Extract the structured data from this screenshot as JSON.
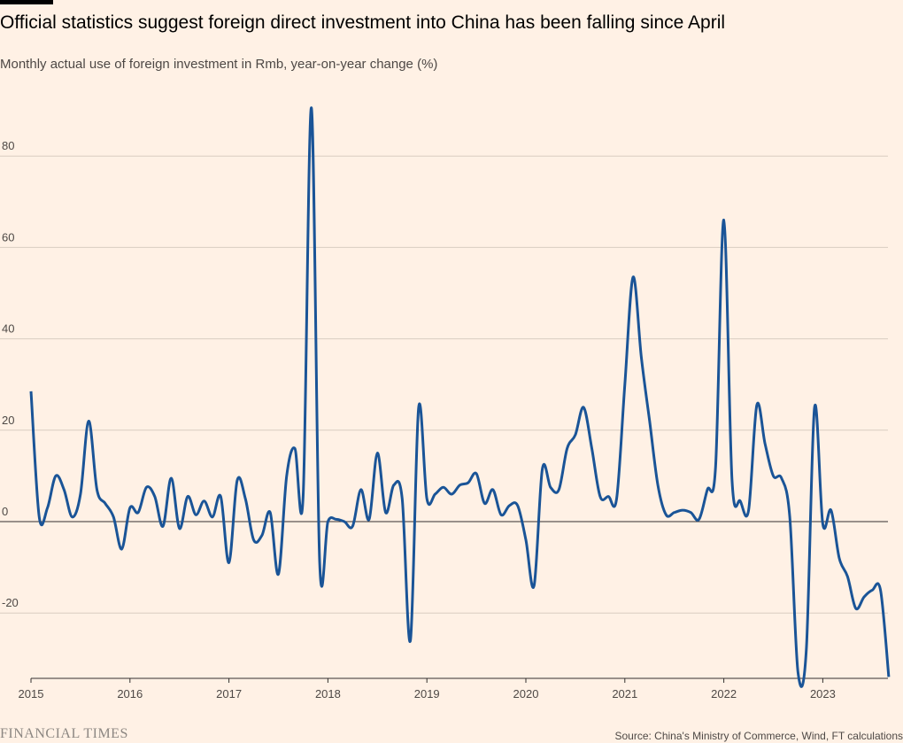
{
  "title": "Official statistics suggest foreign direct investment into China has been falling since April",
  "subtitle": "Monthly actual use of foreign investment in Rmb, year-on-year change (%)",
  "footer": {
    "logo": "FINANCIAL TIMES",
    "source": "Source: China's Ministry of Commerce, Wind, FT calculations"
  },
  "colors": {
    "background": "#fff1e5",
    "series": "#1a5497",
    "grid": "#d9cdc2",
    "zero_line": "#33302e"
  },
  "chart_data": {
    "type": "line",
    "title": "Official statistics suggest foreign direct investment into China has been falling since April",
    "subtitle": "Monthly actual use of foreign investment in Rmb, year-on-year change (%)",
    "xlabel": "",
    "ylabel": "",
    "x_ticks": [
      "2015",
      "2016",
      "2017",
      "2018",
      "2019",
      "2020",
      "2021",
      "2022",
      "2023"
    ],
    "y_ticks": [
      80,
      60,
      40,
      20,
      0,
      -20
    ],
    "ylim": [
      -34,
      92
    ],
    "xlim": [
      "2015-01",
      "2023-09"
    ],
    "grid": true,
    "legend": "none",
    "series": [
      {
        "name": "",
        "x": [
          "2015-01",
          "2015-02",
          "2015-03",
          "2015-04",
          "2015-05",
          "2015-06",
          "2015-07",
          "2015-08",
          "2015-09",
          "2015-10",
          "2015-11",
          "2015-12",
          "2016-01",
          "2016-02",
          "2016-03",
          "2016-04",
          "2016-05",
          "2016-06",
          "2016-07",
          "2016-08",
          "2016-09",
          "2016-10",
          "2016-11",
          "2016-12",
          "2017-01",
          "2017-02",
          "2017-03",
          "2017-04",
          "2017-05",
          "2017-06",
          "2017-07",
          "2017-08",
          "2017-09",
          "2017-10",
          "2017-11",
          "2017-12",
          "2018-01",
          "2018-02",
          "2018-03",
          "2018-04",
          "2018-05",
          "2018-06",
          "2018-07",
          "2018-08",
          "2018-09",
          "2018-10",
          "2018-11",
          "2018-12",
          "2019-01",
          "2019-02",
          "2019-03",
          "2019-04",
          "2019-05",
          "2019-06",
          "2019-07",
          "2019-08",
          "2019-09",
          "2019-10",
          "2019-11",
          "2019-12",
          "2020-01",
          "2020-02",
          "2020-03",
          "2020-04",
          "2020-05",
          "2020-06",
          "2020-07",
          "2020-08",
          "2020-09",
          "2020-10",
          "2020-11",
          "2020-12",
          "2021-01",
          "2021-02",
          "2021-03",
          "2021-04",
          "2021-05",
          "2021-06",
          "2021-07",
          "2021-08",
          "2021-09",
          "2021-10",
          "2021-11",
          "2021-12",
          "2022-01",
          "2022-02",
          "2022-03",
          "2022-04",
          "2022-05",
          "2022-06",
          "2022-07",
          "2022-08",
          "2022-09",
          "2022-10",
          "2022-11",
          "2022-12",
          "2023-01",
          "2023-02",
          "2023-03",
          "2023-04",
          "2023-05",
          "2023-06",
          "2023-07",
          "2023-08",
          "2023-09"
        ],
        "values": [
          28.5,
          1,
          3,
          10,
          7,
          1,
          6,
          22,
          7,
          4,
          1,
          -6,
          3,
          2,
          7.5,
          5.5,
          -1,
          9.5,
          -1.5,
          5.5,
          1.5,
          4.5,
          1,
          5.5,
          -9,
          9,
          5,
          -4,
          -3,
          2,
          -11.5,
          10,
          16,
          5.5,
          90.5,
          -9,
          0,
          0.5,
          0,
          -1,
          7,
          0.5,
          15,
          2,
          8,
          5,
          -26,
          25,
          5,
          6,
          7.5,
          6,
          8,
          8.5,
          10.5,
          4,
          7,
          1.5,
          3.5,
          3.5,
          -4,
          -14,
          11.5,
          7.5,
          7,
          16,
          19,
          25,
          16,
          5.5,
          5.5,
          5,
          30,
          53.5,
          36,
          22,
          8,
          1.5,
          2,
          2.5,
          2,
          0.5,
          7,
          12,
          66,
          9,
          4.5,
          2.5,
          25.5,
          17,
          10,
          9.5,
          1,
          -33,
          -28,
          25,
          -0.5,
          2.5,
          -8,
          -12,
          -19,
          -16.5,
          -15,
          -15,
          -34
        ]
      }
    ]
  }
}
